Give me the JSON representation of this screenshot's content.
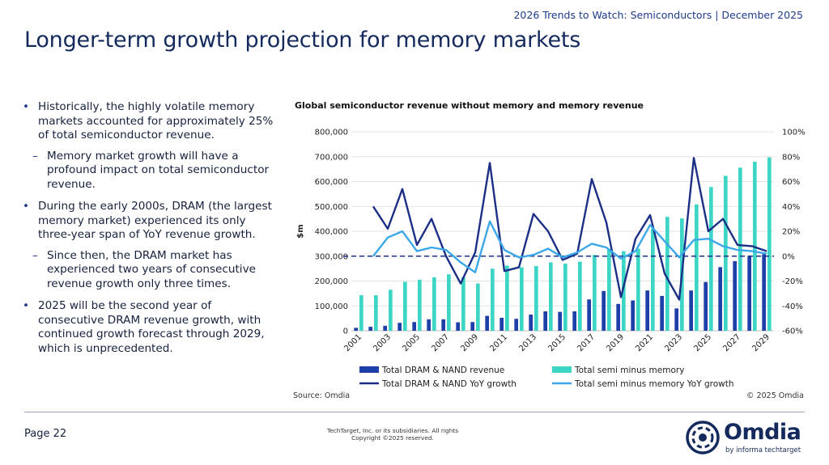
{
  "header": {
    "note": "2026 Trends to Watch: Semiconductors | December 2025"
  },
  "page": {
    "title": "Longer-term growth projection for memory markets"
  },
  "bullets": [
    {
      "level": 1,
      "marker": "•",
      "text": "Historically, the highly volatile memory markets accounted for approximately 25% of total semiconductor revenue."
    },
    {
      "level": 2,
      "marker": "–",
      "text": "Memory market growth will have a profound impact on total semiconductor revenue."
    },
    {
      "level": 1,
      "marker": "•",
      "text": "During the early 2000s, DRAM (the largest memory market) experienced its only three-year span of YoY revenue growth."
    },
    {
      "level": 2,
      "marker": "–",
      "text": "Since then, the DRAM market has experienced two years of consecutive revenue growth only three times."
    },
    {
      "level": 1,
      "marker": "•",
      "text": "2025 will be the second year of consecutive DRAM revenue growth, with continued growth forecast through 2029, which is unprecedented."
    }
  ],
  "chart_data": {
    "type": "bar",
    "title": "Global semiconductor revenue without memory and memory revenue",
    "ylabel": "$m",
    "ylim": [
      0,
      800000
    ],
    "y2lim": [
      -60,
      100
    ],
    "y_ticks": [
      "0",
      "100,000",
      "200,000",
      "300,000",
      "400,000",
      "500,000",
      "600,000",
      "700,000",
      "800,000"
    ],
    "y2_ticks": [
      "-60%",
      "-40%",
      "-20%",
      "0%",
      "20%",
      "40%",
      "60%",
      "80%",
      "100%"
    ],
    "x": [
      "2001",
      "2002",
      "2003",
      "2004",
      "2005",
      "2006",
      "2007",
      "2008",
      "2009",
      "2010",
      "2011",
      "2012",
      "2013",
      "2014",
      "2015",
      "2016",
      "2017",
      "2018",
      "2019",
      "2020",
      "2021",
      "2022",
      "2023",
      "2024",
      "2025",
      "2026",
      "2027",
      "2028",
      "2029"
    ],
    "x_tick_labels": [
      "2001",
      "2003",
      "2005",
      "2007",
      "2009",
      "2011",
      "2013",
      "2015",
      "2017",
      "2019",
      "2021",
      "2023",
      "2025",
      "2027",
      "2029"
    ],
    "series": [
      {
        "name": "Total DRAM & NAND revenue",
        "kind": "bar",
        "axis": "left",
        "color": "#1f3fa8",
        "values": [
          12000,
          16000,
          20000,
          32000,
          35000,
          46000,
          46000,
          34000,
          35000,
          60000,
          52000,
          48000,
          65000,
          78000,
          76000,
          78000,
          126000,
          160000,
          108000,
          122000,
          162000,
          140000,
          90000,
          162000,
          196000,
          256000,
          280000,
          300000,
          308000
        ]
      },
      {
        "name": "Total semi minus memory",
        "kind": "bar",
        "axis": "left",
        "color": "#3dd6c6",
        "values": [
          143000,
          143000,
          165000,
          197000,
          205000,
          215000,
          227000,
          215000,
          190000,
          250000,
          262000,
          255000,
          260000,
          275000,
          270000,
          278000,
          305000,
          328000,
          320000,
          330000,
          410000,
          458000,
          452000,
          508000,
          578000,
          623000,
          656000,
          680000,
          697000
        ]
      },
      {
        "name": "Total DRAM & NAND YoY growth",
        "kind": "line",
        "axis": "right",
        "color": "#1b2f86",
        "values": [
          null,
          40,
          22,
          54,
          9,
          30,
          0,
          -22,
          3,
          75,
          -12,
          -9,
          34,
          20,
          -3,
          2,
          62,
          27,
          -33,
          14,
          33,
          -14,
          -35,
          79,
          20,
          30,
          9,
          8,
          4
        ]
      },
      {
        "name": "Total semi minus memory YoY growth",
        "kind": "line",
        "axis": "right",
        "color": "#3ba7e8",
        "values": [
          null,
          0,
          15,
          20,
          4,
          7,
          5,
          -5,
          -13,
          28,
          5,
          -1,
          1,
          6,
          -1,
          3,
          10,
          7,
          -2,
          4,
          25,
          12,
          -1,
          13,
          14,
          8,
          5,
          4,
          2
        ]
      }
    ],
    "legend": "bottom",
    "gridlines": true,
    "zero_line_style": "dashed"
  },
  "chart_footer": {
    "source": "Source: Omdia",
    "copyright": "© 2025 Omdia"
  },
  "footer": {
    "page_label": "Page 22",
    "copyright_line1": "TechTarget, Inc. or its subsidiaries. All rights",
    "copyright_line2": "Copyright ©2025 reserved."
  },
  "logo": {
    "word": "Omdia",
    "tagline": "by informa techtarget"
  }
}
